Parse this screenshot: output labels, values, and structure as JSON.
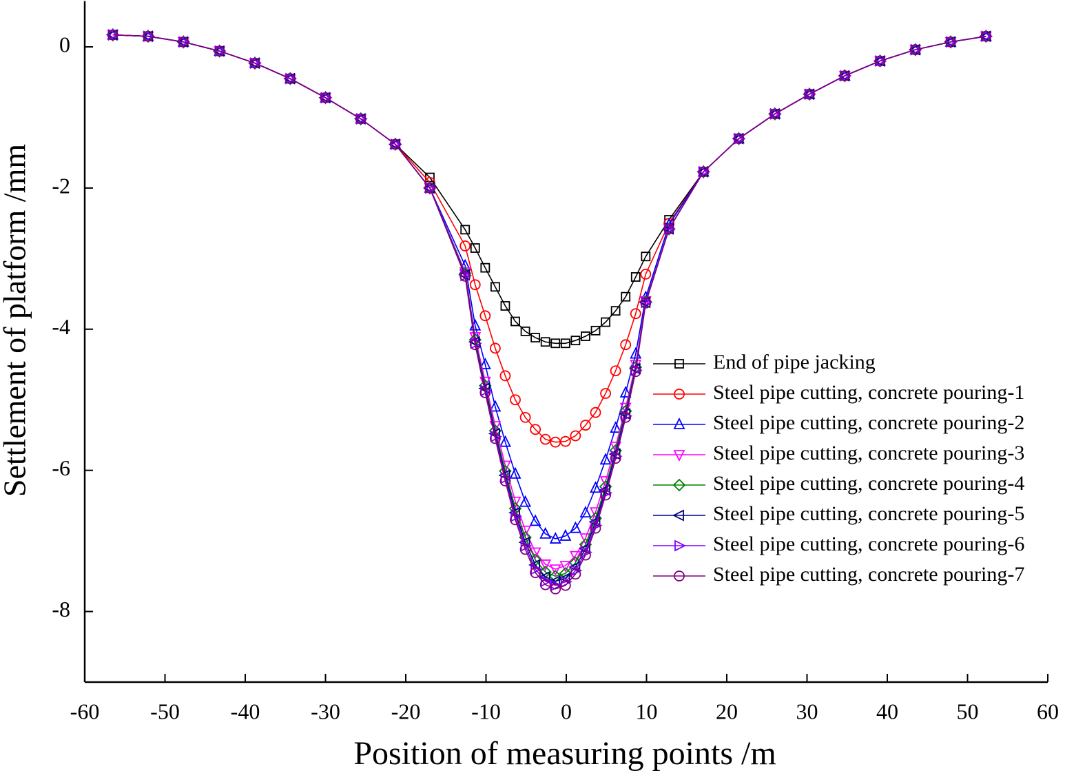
{
  "chart_data": {
    "type": "line",
    "x_label": "Position of measuring points /m",
    "y_label": "Settlement of platform /mm",
    "xlim": [
      -60,
      60
    ],
    "xticks": [
      -60,
      -50,
      -40,
      -30,
      -20,
      -10,
      0,
      10,
      20,
      30,
      40,
      50,
      60
    ],
    "ylim": [
      -9,
      0.65
    ],
    "yticks": [
      0,
      -2,
      -4,
      -6,
      -8
    ],
    "legend_position": "right",
    "x": [
      -56.5,
      -52.1,
      -47.7,
      -43.2,
      -38.8,
      -34.4,
      -30,
      -25.6,
      -21.3,
      -17,
      -12.6,
      -11.35,
      -10.1,
      -8.85,
      -7.6,
      -6.35,
      -5.1,
      -3.85,
      -2.6,
      -1.35,
      -0.1,
      1.15,
      2.4,
      3.65,
      4.9,
      6.15,
      7.4,
      8.65,
      9.9,
      12.8,
      17.1,
      21.5,
      26,
      30.3,
      34.7,
      39.1,
      43.5,
      47.9,
      52.3
    ],
    "series": [
      {
        "name": "End of pipe jacking",
        "color": "#000000",
        "marker": "square",
        "values": [
          0.17,
          0.15,
          0.07,
          -0.06,
          -0.23,
          -0.45,
          -0.72,
          -1.02,
          -1.38,
          -1.85,
          -2.59,
          -2.85,
          -3.13,
          -3.4,
          -3.67,
          -3.89,
          -4.03,
          -4.12,
          -4.18,
          -4.2,
          -4.2,
          -4.16,
          -4.1,
          -4.02,
          -3.9,
          -3.74,
          -3.54,
          -3.26,
          -2.97,
          -2.45,
          -1.77,
          -1.3,
          -0.95,
          -0.67,
          -0.41,
          -0.2,
          -0.04,
          0.07,
          0.15
        ]
      },
      {
        "name": "Steel pipe cutting, concrete pouring-1",
        "color": "#ff0000",
        "marker": "circle",
        "values": [
          0.17,
          0.15,
          0.07,
          -0.06,
          -0.23,
          -0.45,
          -0.72,
          -1.02,
          -1.38,
          -1.92,
          -2.82,
          -3.37,
          -3.81,
          -4.27,
          -4.66,
          -5.0,
          -5.25,
          -5.42,
          -5.56,
          -5.6,
          -5.59,
          -5.51,
          -5.36,
          -5.18,
          -4.91,
          -4.59,
          -4.22,
          -3.78,
          -3.22,
          -2.5,
          -1.77,
          -1.3,
          -0.95,
          -0.67,
          -0.41,
          -0.2,
          -0.04,
          0.07,
          0.15
        ]
      },
      {
        "name": "Steel pipe cutting, concrete pouring-2",
        "color": "#0000ff",
        "marker": "triangle-up",
        "values": [
          0.17,
          0.15,
          0.07,
          -0.06,
          -0.23,
          -0.45,
          -0.72,
          -1.02,
          -1.38,
          -2.0,
          -3.1,
          -3.95,
          -4.5,
          -5.1,
          -5.6,
          -6.05,
          -6.45,
          -6.72,
          -6.9,
          -6.97,
          -6.93,
          -6.82,
          -6.6,
          -6.25,
          -5.85,
          -5.4,
          -4.9,
          -4.35,
          -3.55,
          -2.52,
          -1.77,
          -1.3,
          -0.95,
          -0.67,
          -0.41,
          -0.2,
          -0.04,
          0.07,
          0.15
        ]
      },
      {
        "name": "Steel pipe cutting, concrete pouring-3",
        "color": "#ff00ff",
        "marker": "triangle-down",
        "values": [
          0.17,
          0.15,
          0.07,
          -0.06,
          -0.23,
          -0.45,
          -0.72,
          -1.02,
          -1.38,
          -2.0,
          -3.19,
          -4.11,
          -4.74,
          -5.37,
          -5.93,
          -6.44,
          -6.85,
          -7.16,
          -7.33,
          -7.4,
          -7.35,
          -7.21,
          -6.96,
          -6.59,
          -6.15,
          -5.66,
          -5.11,
          -4.5,
          -3.6,
          -2.58,
          -1.77,
          -1.3,
          -0.95,
          -0.67,
          -0.41,
          -0.2,
          -0.04,
          0.07,
          0.15
        ]
      },
      {
        "name": "Steel pipe cutting, concrete pouring-4",
        "color": "#008000",
        "marker": "diamond",
        "values": [
          0.17,
          0.15,
          0.07,
          -0.06,
          -0.23,
          -0.45,
          -0.72,
          -1.02,
          -1.38,
          -2.0,
          -3.21,
          -4.15,
          -4.8,
          -5.44,
          -6.01,
          -6.54,
          -6.95,
          -7.27,
          -7.44,
          -7.5,
          -7.46,
          -7.31,
          -7.05,
          -6.68,
          -6.23,
          -5.72,
          -5.16,
          -4.54,
          -3.61,
          -2.58,
          -1.77,
          -1.3,
          -0.95,
          -0.67,
          -0.41,
          -0.2,
          -0.04,
          0.07,
          0.15
        ]
      },
      {
        "name": "Steel pipe cutting, concrete pouring-5",
        "color": "#000080",
        "marker": "triangle-left",
        "values": [
          0.17,
          0.15,
          0.07,
          -0.06,
          -0.23,
          -0.45,
          -0.72,
          -1.02,
          -1.38,
          -2.0,
          -3.23,
          -4.18,
          -4.84,
          -5.48,
          -6.07,
          -6.6,
          -7.02,
          -7.34,
          -7.51,
          -7.57,
          -7.53,
          -7.37,
          -7.11,
          -6.73,
          -6.28,
          -5.77,
          -5.2,
          -4.56,
          -3.62,
          -2.58,
          -1.77,
          -1.3,
          -0.95,
          -0.67,
          -0.41,
          -0.2,
          -0.04,
          0.07,
          0.15
        ]
      },
      {
        "name": "Steel pipe cutting, concrete pouring-6",
        "color": "#8000ff",
        "marker": "triangle-right",
        "values": [
          0.17,
          0.15,
          0.07,
          -0.06,
          -0.23,
          -0.45,
          -0.72,
          -1.02,
          -1.38,
          -2.0,
          -3.24,
          -4.2,
          -4.87,
          -5.52,
          -6.11,
          -6.65,
          -7.07,
          -7.4,
          -7.57,
          -7.63,
          -7.58,
          -7.42,
          -7.16,
          -6.78,
          -6.32,
          -5.8,
          -5.23,
          -4.58,
          -3.62,
          -2.58,
          -1.77,
          -1.3,
          -0.95,
          -0.67,
          -0.41,
          -0.2,
          -0.04,
          0.07,
          0.15
        ]
      },
      {
        "name": "Steel pipe cutting, concrete pouring-7",
        "color": "#800080",
        "marker": "circle",
        "values": [
          0.17,
          0.15,
          0.07,
          -0.06,
          -0.23,
          -0.45,
          -0.72,
          -1.02,
          -1.38,
          -2.0,
          -3.25,
          -4.22,
          -4.9,
          -5.55,
          -6.15,
          -6.7,
          -7.12,
          -7.45,
          -7.62,
          -7.68,
          -7.63,
          -7.47,
          -7.2,
          -6.82,
          -6.35,
          -5.83,
          -5.25,
          -4.6,
          -3.63,
          -2.58,
          -1.77,
          -1.3,
          -0.95,
          -0.67,
          -0.41,
          -0.2,
          -0.04,
          0.07,
          0.15
        ]
      }
    ]
  }
}
